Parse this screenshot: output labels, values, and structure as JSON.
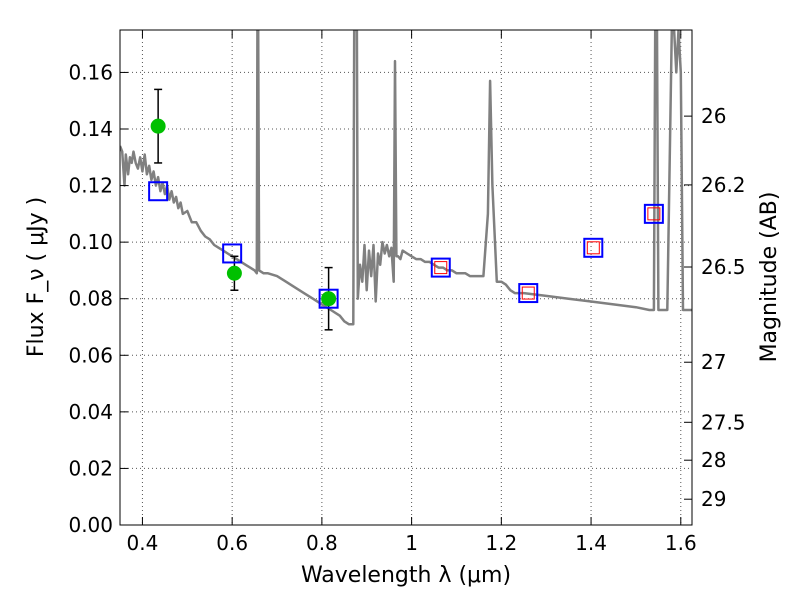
{
  "chart_data": {
    "type": "scatter",
    "title": "",
    "xlabel": "Wavelength  λ (μm)",
    "ylabel": "Flux  F_ν  ( μJy )",
    "y2label": "Magnitude (AB)",
    "xlim": [
      0.35,
      1.625
    ],
    "ylim": [
      0.0,
      0.175
    ],
    "grid": true,
    "x_ticks": [
      0.4,
      0.6,
      0.8,
      1.0,
      1.2,
      1.4,
      1.6
    ],
    "x_tick_labels": [
      "0.4",
      "0.6",
      "0.8",
      "1",
      "1.2",
      "1.4",
      "1.6"
    ],
    "y_ticks": [
      0.0,
      0.02,
      0.04,
      0.06,
      0.08,
      0.1,
      0.12,
      0.14,
      0.16
    ],
    "y_tick_labels": [
      "0.00",
      "0.02",
      "0.04",
      "0.06",
      "0.08",
      "0.10",
      "0.12",
      "0.14",
      "0.16"
    ],
    "y2_ticks": [
      26,
      26.2,
      26.5,
      27,
      27.5,
      28,
      29
    ],
    "y2_tick_labels": [
      "26",
      "26.2",
      "26.5",
      "27",
      "27.5",
      "28",
      "29"
    ],
    "series": [
      {
        "type": "line",
        "color": "#808080",
        "points": [
          [
            0.35,
            0.134
          ],
          [
            0.355,
            0.132
          ],
          [
            0.36,
            0.12
          ],
          [
            0.363,
            0.131
          ],
          [
            0.368,
            0.124
          ],
          [
            0.372,
            0.13
          ],
          [
            0.376,
            0.128
          ],
          [
            0.38,
            0.132
          ],
          [
            0.385,
            0.128
          ],
          [
            0.39,
            0.126
          ],
          [
            0.395,
            0.13
          ],
          [
            0.4,
            0.125
          ],
          [
            0.405,
            0.131
          ],
          [
            0.41,
            0.124
          ],
          [
            0.415,
            0.127
          ],
          [
            0.42,
            0.122
          ],
          [
            0.425,
            0.125
          ],
          [
            0.43,
            0.12
          ],
          [
            0.435,
            0.123
          ],
          [
            0.44,
            0.118
          ],
          [
            0.445,
            0.121
          ],
          [
            0.45,
            0.117
          ],
          [
            0.455,
            0.12
          ],
          [
            0.46,
            0.115
          ],
          [
            0.465,
            0.118
          ],
          [
            0.47,
            0.114
          ],
          [
            0.475,
            0.116
          ],
          [
            0.48,
            0.112
          ],
          [
            0.485,
            0.114
          ],
          [
            0.49,
            0.11
          ],
          [
            0.5,
            0.111
          ],
          [
            0.51,
            0.107
          ],
          [
            0.52,
            0.107
          ],
          [
            0.53,
            0.104
          ],
          [
            0.54,
            0.102
          ],
          [
            0.55,
            0.101
          ],
          [
            0.56,
            0.099
          ],
          [
            0.57,
            0.098
          ],
          [
            0.58,
            0.097
          ],
          [
            0.59,
            0.096
          ],
          [
            0.6,
            0.095
          ],
          [
            0.61,
            0.094
          ],
          [
            0.62,
            0.093
          ],
          [
            0.63,
            0.092
          ],
          [
            0.64,
            0.091
          ],
          [
            0.65,
            0.09
          ],
          [
            0.655,
            0.089
          ],
          [
            0.6563,
            0.175
          ],
          [
            0.658,
            0.175
          ],
          [
            0.66,
            0.09
          ],
          [
            0.67,
            0.089
          ],
          [
            0.68,
            0.089
          ],
          [
            0.7,
            0.088
          ],
          [
            0.72,
            0.086
          ],
          [
            0.74,
            0.084
          ],
          [
            0.76,
            0.082
          ],
          [
            0.78,
            0.08
          ],
          [
            0.8,
            0.078
          ],
          [
            0.82,
            0.076
          ],
          [
            0.84,
            0.074
          ],
          [
            0.85,
            0.072
          ],
          [
            0.86,
            0.071
          ],
          [
            0.87,
            0.071
          ],
          [
            0.872,
            0.175
          ],
          [
            0.878,
            0.175
          ],
          [
            0.88,
            0.08
          ],
          [
            0.885,
            0.092
          ],
          [
            0.89,
            0.086
          ],
          [
            0.895,
            0.099
          ],
          [
            0.9,
            0.083
          ],
          [
            0.905,
            0.097
          ],
          [
            0.91,
            0.088
          ],
          [
            0.915,
            0.099
          ],
          [
            0.92,
            0.079
          ],
          [
            0.925,
            0.096
          ],
          [
            0.93,
            0.092
          ],
          [
            0.935,
            0.1
          ],
          [
            0.94,
            0.096
          ],
          [
            0.945,
            0.099
          ],
          [
            0.95,
            0.095
          ],
          [
            0.955,
            0.098
          ],
          [
            0.96,
            0.086
          ],
          [
            0.963,
            0.164
          ],
          [
            0.966,
            0.095
          ],
          [
            0.97,
            0.095
          ],
          [
            0.975,
            0.094
          ],
          [
            0.98,
            0.097
          ],
          [
            0.99,
            0.096
          ],
          [
            1.0,
            0.095
          ],
          [
            1.01,
            0.094
          ],
          [
            1.02,
            0.094
          ],
          [
            1.03,
            0.093
          ],
          [
            1.04,
            0.093
          ],
          [
            1.05,
            0.092
          ],
          [
            1.06,
            0.091
          ],
          [
            1.07,
            0.091
          ],
          [
            1.08,
            0.09
          ],
          [
            1.09,
            0.09
          ],
          [
            1.1,
            0.089
          ],
          [
            1.11,
            0.089
          ],
          [
            1.12,
            0.089
          ],
          [
            1.13,
            0.088
          ],
          [
            1.14,
            0.088
          ],
          [
            1.15,
            0.088
          ],
          [
            1.16,
            0.088
          ],
          [
            1.17,
            0.11
          ],
          [
            1.175,
            0.157
          ],
          [
            1.18,
            0.12
          ],
          [
            1.19,
            0.086
          ],
          [
            1.2,
            0.086
          ],
          [
            1.21,
            0.085
          ],
          [
            1.215,
            0.084
          ],
          [
            1.22,
            0.083
          ],
          [
            1.23,
            0.082
          ],
          [
            1.25,
            0.082
          ],
          [
            1.3,
            0.081
          ],
          [
            1.35,
            0.08
          ],
          [
            1.4,
            0.079
          ],
          [
            1.45,
            0.078
          ],
          [
            1.5,
            0.077
          ],
          [
            1.53,
            0.076
          ],
          [
            1.54,
            0.076
          ],
          [
            1.543,
            0.175
          ],
          [
            1.547,
            0.175
          ],
          [
            1.55,
            0.076
          ],
          [
            1.56,
            0.076
          ],
          [
            1.57,
            0.076
          ],
          [
            1.58,
            0.175
          ],
          [
            1.585,
            0.175
          ],
          [
            1.59,
            0.16
          ],
          [
            1.595,
            0.175
          ],
          [
            1.6,
            0.16
          ],
          [
            1.605,
            0.076
          ],
          [
            1.61,
            0.076
          ],
          [
            1.625,
            0.076
          ]
        ]
      },
      {
        "type": "errorbar",
        "marker": "circle",
        "color": "#00c000",
        "x": [
          0.435,
          0.605,
          0.815
        ],
        "y": [
          0.141,
          0.089,
          0.08
        ],
        "yerr": [
          0.013,
          0.006,
          0.011
        ]
      },
      {
        "type": "scatter",
        "marker": "square-open",
        "color": "#0000ff",
        "x": [
          0.435,
          0.6,
          0.815,
          1.065,
          1.26,
          1.405,
          1.54
        ],
        "y": [
          0.118,
          0.096,
          0.08,
          0.091,
          0.082,
          0.098,
          0.11
        ]
      },
      {
        "type": "scatter",
        "marker": "square-open-small",
        "color": "#ff0000",
        "x": [
          1.065,
          1.26,
          1.405,
          1.54
        ],
        "y": [
          0.091,
          0.082,
          0.098,
          0.11
        ]
      }
    ]
  }
}
